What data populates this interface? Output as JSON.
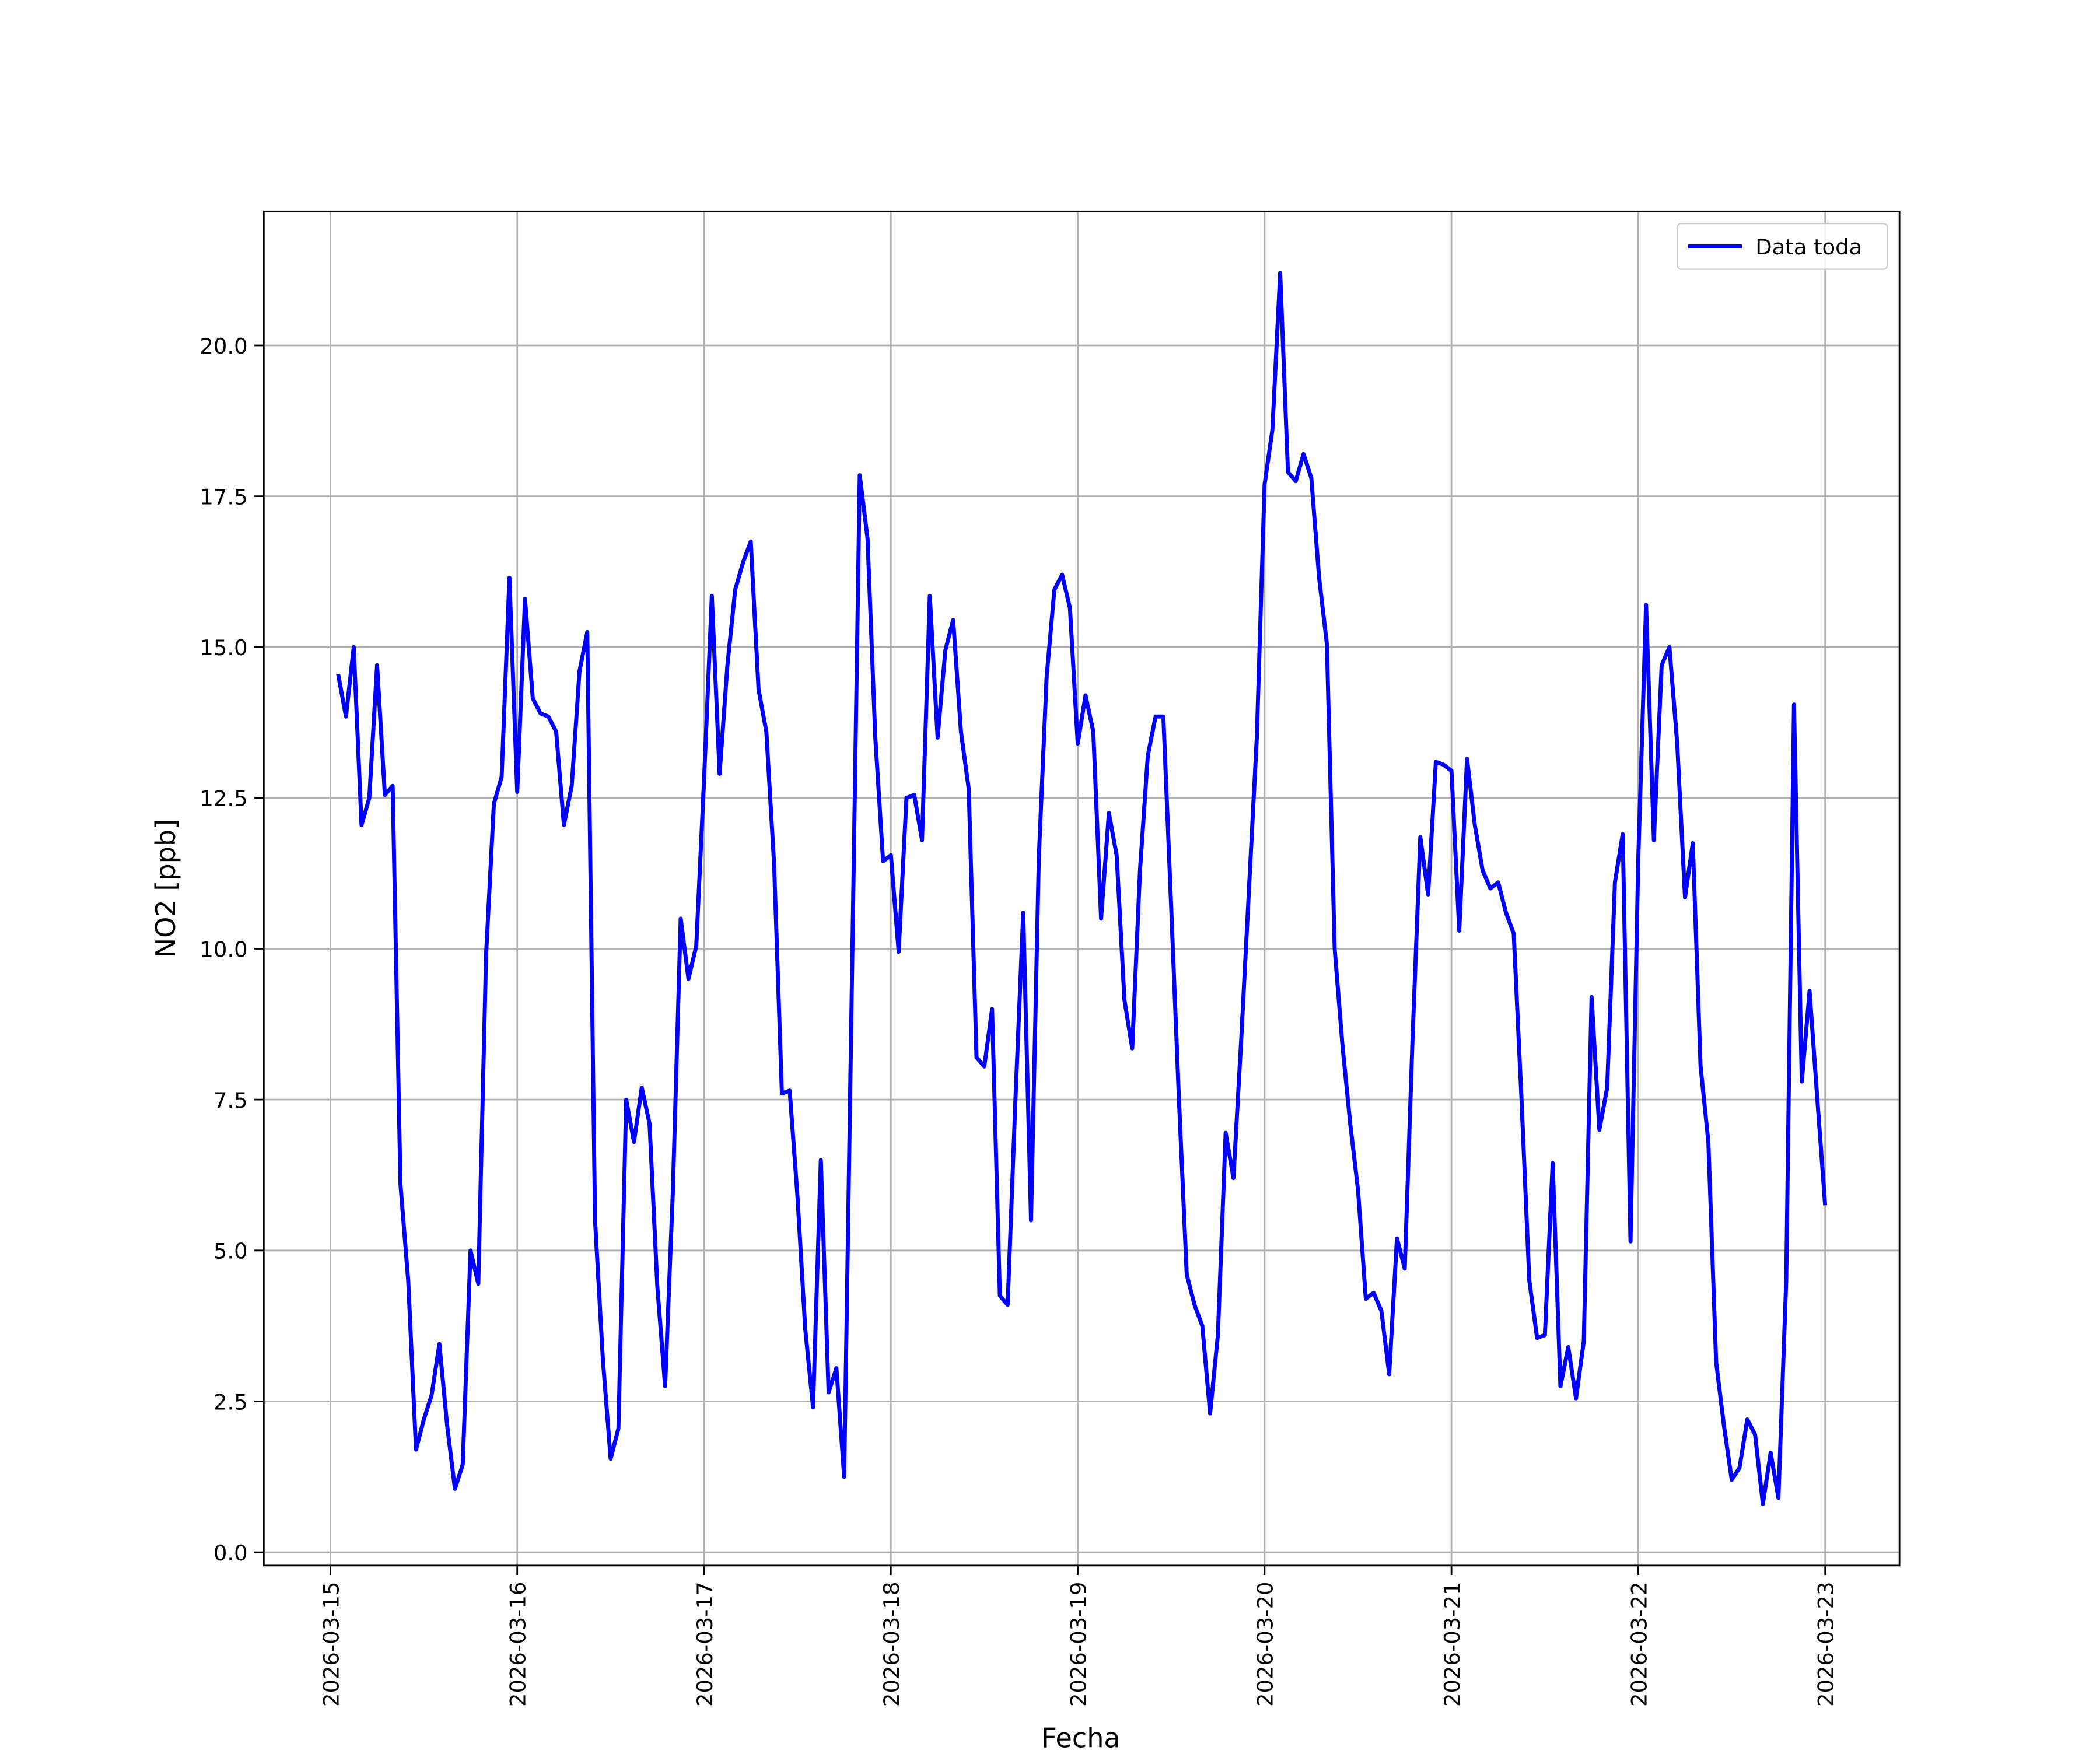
{
  "chart_data": {
    "type": "line",
    "xlabel": "Fecha",
    "ylabel": "NO2 [ppb]",
    "x": [
      "2026-03-15 01:00",
      "2026-03-15 02:00",
      "2026-03-15 03:00",
      "2026-03-15 04:00",
      "2026-03-15 05:00",
      "2026-03-15 06:00",
      "2026-03-15 07:00",
      "2026-03-15 08:00",
      "2026-03-15 09:00",
      "2026-03-15 10:00",
      "2026-03-15 11:00",
      "2026-03-15 12:00",
      "2026-03-15 13:00",
      "2026-03-15 14:00",
      "2026-03-15 15:00",
      "2026-03-15 16:00",
      "2026-03-15 17:00",
      "2026-03-15 18:00",
      "2026-03-15 19:00",
      "2026-03-15 20:00",
      "2026-03-15 21:00",
      "2026-03-15 22:00",
      "2026-03-15 23:00",
      "2026-03-16 00:00",
      "2026-03-16 01:00",
      "2026-03-16 02:00",
      "2026-03-16 03:00",
      "2026-03-16 04:00",
      "2026-03-16 05:00",
      "2026-03-16 06:00",
      "2026-03-16 07:00",
      "2026-03-16 08:00",
      "2026-03-16 09:00",
      "2026-03-16 10:00",
      "2026-03-16 11:00",
      "2026-03-16 12:00",
      "2026-03-16 13:00",
      "2026-03-16 14:00",
      "2026-03-16 15:00",
      "2026-03-16 16:00",
      "2026-03-16 17:00",
      "2026-03-16 18:00",
      "2026-03-16 19:00",
      "2026-03-16 20:00",
      "2026-03-16 21:00",
      "2026-03-16 22:00",
      "2026-03-16 23:00",
      "2026-03-17 00:00",
      "2026-03-17 01:00",
      "2026-03-17 02:00",
      "2026-03-17 03:00",
      "2026-03-17 04:00",
      "2026-03-17 05:00",
      "2026-03-17 06:00",
      "2026-03-17 07:00",
      "2026-03-17 08:00",
      "2026-03-17 09:00",
      "2026-03-17 10:00",
      "2026-03-17 11:00",
      "2026-03-17 12:00",
      "2026-03-17 13:00",
      "2026-03-17 14:00",
      "2026-03-17 15:00",
      "2026-03-17 16:00",
      "2026-03-17 17:00",
      "2026-03-17 18:00",
      "2026-03-17 19:00",
      "2026-03-17 20:00",
      "2026-03-17 21:00",
      "2026-03-17 22:00",
      "2026-03-17 23:00",
      "2026-03-18 00:00",
      "2026-03-18 01:00",
      "2026-03-18 02:00",
      "2026-03-18 03:00",
      "2026-03-18 04:00",
      "2026-03-18 05:00",
      "2026-03-18 06:00",
      "2026-03-18 07:00",
      "2026-03-18 08:00",
      "2026-03-18 09:00",
      "2026-03-18 10:00",
      "2026-03-18 11:00",
      "2026-03-18 12:00",
      "2026-03-18 13:00",
      "2026-03-18 14:00",
      "2026-03-18 15:00",
      "2026-03-18 16:00",
      "2026-03-18 17:00",
      "2026-03-18 18:00",
      "2026-03-18 19:00",
      "2026-03-18 20:00",
      "2026-03-18 21:00",
      "2026-03-18 22:00",
      "2026-03-18 23:00",
      "2026-03-19 00:00",
      "2026-03-19 01:00",
      "2026-03-19 02:00",
      "2026-03-19 03:00",
      "2026-03-19 04:00",
      "2026-03-19 05:00",
      "2026-03-19 06:00",
      "2026-03-19 07:00",
      "2026-03-19 08:00",
      "2026-03-19 09:00",
      "2026-03-19 10:00",
      "2026-03-19 11:00",
      "2026-03-19 12:00",
      "2026-03-19 13:00",
      "2026-03-19 14:00",
      "2026-03-19 15:00",
      "2026-03-19 16:00",
      "2026-03-19 17:00",
      "2026-03-19 18:00",
      "2026-03-19 19:00",
      "2026-03-19 20:00",
      "2026-03-19 21:00",
      "2026-03-19 22:00",
      "2026-03-19 23:00",
      "2026-03-20 00:00",
      "2026-03-20 01:00",
      "2026-03-20 02:00",
      "2026-03-20 03:00",
      "2026-03-20 04:00",
      "2026-03-20 05:00",
      "2026-03-20 06:00",
      "2026-03-20 07:00",
      "2026-03-20 08:00",
      "2026-03-20 09:00",
      "2026-03-20 10:00",
      "2026-03-20 11:00",
      "2026-03-20 12:00",
      "2026-03-20 13:00",
      "2026-03-20 14:00",
      "2026-03-20 15:00",
      "2026-03-20 16:00",
      "2026-03-20 17:00",
      "2026-03-20 18:00",
      "2026-03-20 19:00",
      "2026-03-20 20:00",
      "2026-03-20 21:00",
      "2026-03-20 22:00",
      "2026-03-20 23:00",
      "2026-03-21 00:00",
      "2026-03-21 01:00",
      "2026-03-21 02:00",
      "2026-03-21 03:00",
      "2026-03-21 04:00",
      "2026-03-21 05:00",
      "2026-03-21 06:00",
      "2026-03-21 07:00",
      "2026-03-21 08:00",
      "2026-03-21 09:00",
      "2026-03-21 10:00",
      "2026-03-21 11:00",
      "2026-03-21 12:00",
      "2026-03-21 13:00",
      "2026-03-21 14:00",
      "2026-03-21 15:00",
      "2026-03-21 16:00",
      "2026-03-21 17:00",
      "2026-03-21 18:00",
      "2026-03-21 19:00",
      "2026-03-21 20:00",
      "2026-03-21 21:00",
      "2026-03-21 22:00",
      "2026-03-21 23:00",
      "2026-03-22 00:00",
      "2026-03-22 01:00",
      "2026-03-22 02:00",
      "2026-03-22 03:00",
      "2026-03-22 04:00",
      "2026-03-22 05:00",
      "2026-03-22 06:00",
      "2026-03-22 07:00",
      "2026-03-22 08:00",
      "2026-03-22 09:00",
      "2026-03-22 10:00",
      "2026-03-22 11:00",
      "2026-03-22 12:00",
      "2026-03-22 13:00",
      "2026-03-22 14:00",
      "2026-03-22 15:00",
      "2026-03-22 16:00",
      "2026-03-22 17:00",
      "2026-03-22 18:00",
      "2026-03-22 19:00",
      "2026-03-22 20:00",
      "2026-03-22 21:00",
      "2026-03-22 22:00",
      "2026-03-22 23:00",
      "2026-03-23 00:00"
    ],
    "series": [
      {
        "name": "Data toda",
        "color": "#0000ff",
        "values": [
          14.55,
          13.85,
          15.0,
          12.05,
          12.5,
          14.7,
          12.55,
          12.7,
          6.1,
          4.5,
          1.7,
          2.2,
          2.6,
          3.45,
          2.1,
          1.05,
          1.45,
          5.0,
          4.45,
          9.9,
          12.4,
          12.85,
          16.15,
          12.6,
          15.8,
          14.15,
          13.9,
          13.85,
          13.6,
          12.05,
          12.7,
          14.6,
          15.25,
          5.5,
          3.2,
          1.55,
          2.05,
          7.5,
          6.8,
          7.7,
          7.1,
          4.4,
          2.75,
          6.0,
          10.5,
          9.5,
          10.05,
          12.8,
          15.85,
          12.9,
          14.7,
          15.95,
          16.4,
          16.75,
          14.3,
          13.6,
          11.4,
          7.6,
          7.65,
          5.9,
          3.7,
          2.4,
          6.5,
          2.65,
          3.05,
          1.25,
          9.5,
          17.85,
          16.8,
          13.5,
          11.45,
          11.55,
          9.95,
          12.5,
          12.55,
          11.8,
          15.85,
          13.5,
          14.95,
          15.45,
          13.6,
          12.65,
          8.2,
          8.05,
          9.0,
          4.25,
          4.1,
          7.5,
          10.6,
          5.5,
          11.5,
          14.5,
          15.95,
          16.2,
          15.65,
          13.4,
          14.2,
          13.6,
          10.5,
          12.25,
          11.55,
          9.15,
          8.35,
          11.3,
          13.2,
          13.85,
          13.85,
          10.7,
          7.5,
          4.6,
          4.1,
          3.75,
          2.3,
          3.6,
          6.95,
          6.2,
          8.5,
          11.0,
          13.5,
          17.7,
          18.6,
          21.2,
          17.9,
          17.75,
          18.2,
          17.8,
          16.15,
          15.05,
          10.0,
          8.4,
          7.1,
          6.0,
          4.2,
          4.3,
          4.0,
          2.95,
          5.2,
          4.7,
          8.5,
          11.85,
          10.9,
          13.1,
          13.05,
          12.95,
          10.3,
          13.15,
          12.05,
          11.3,
          11.0,
          11.1,
          10.6,
          10.25,
          7.5,
          4.5,
          3.55,
          3.6,
          6.45,
          2.75,
          3.4,
          2.55,
          3.5,
          9.2,
          7.0,
          7.7,
          11.1,
          11.9,
          5.15,
          11.5,
          15.7,
          11.8,
          14.7,
          15.0,
          13.4,
          10.85,
          11.75,
          8.05,
          6.8,
          3.15,
          2.1,
          1.2,
          1.4,
          2.2,
          1.95,
          0.8,
          1.65,
          0.9,
          4.5,
          14.05,
          7.8,
          9.3,
          7.5,
          5.75
        ]
      }
    ],
    "xlim": [
      "2026-03-14 15:27",
      "2026-03-23 09:33"
    ],
    "xticks": [
      "2026-03-15",
      "2026-03-16",
      "2026-03-17",
      "2026-03-18",
      "2026-03-19",
      "2026-03-20",
      "2026-03-21",
      "2026-03-22",
      "2026-03-23"
    ],
    "ylim": [
      -0.22,
      22.22
    ],
    "yticks": [
      {
        "value": 0,
        "label": "0.0"
      },
      2.5,
      {
        "value": 5,
        "label": "5.0"
      },
      7.5,
      {
        "value": 10,
        "label": "10.0"
      },
      12.5,
      {
        "value": 15,
        "label": "15.0"
      },
      17.5,
      {
        "value": 20,
        "label": "20.0"
      }
    ],
    "grid": true,
    "legend": "upper right"
  }
}
